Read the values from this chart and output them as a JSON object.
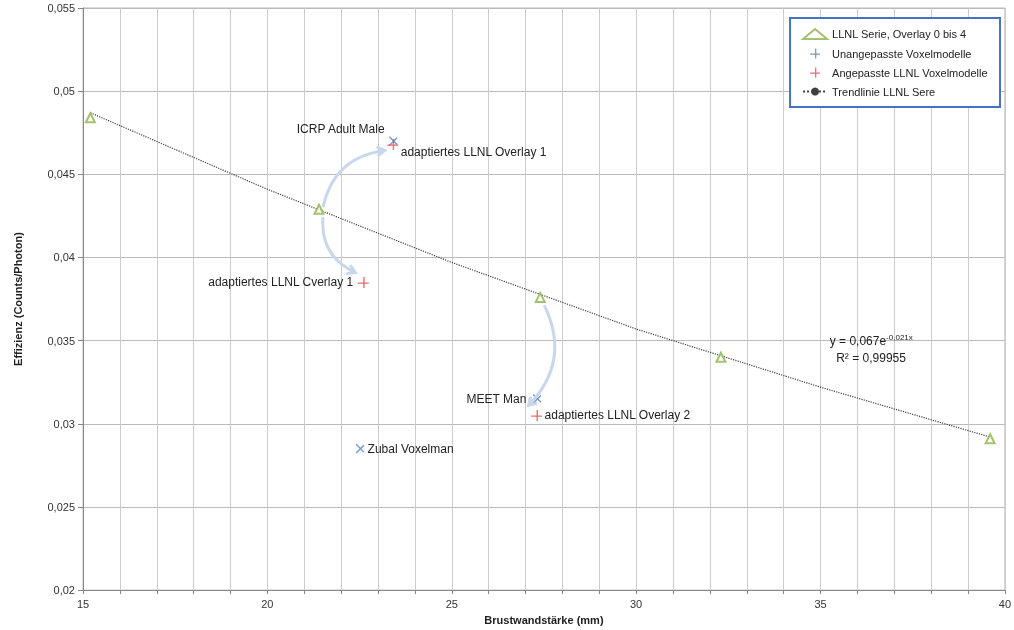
{
  "chart_data": {
    "type": "scatter",
    "xlabel": "Brustwandstärke (mm)",
    "ylabel": "Effizienz (Counts/Photon)",
    "xlim": [
      15,
      40
    ],
    "xticks": [
      15,
      {
        "value": 16,
        "label": null
      },
      {
        "value": 17,
        "label": null
      },
      {
        "value": 18,
        "label": null
      },
      {
        "value": 19,
        "label": null
      },
      20,
      {
        "value": 21,
        "label": null
      },
      {
        "value": 22,
        "label": null
      },
      {
        "value": 23,
        "label": null
      },
      {
        "value": 24,
        "label": null
      },
      25,
      {
        "value": 26,
        "label": null
      },
      {
        "value": 27,
        "label": null
      },
      {
        "value": 28,
        "label": null
      },
      {
        "value": 29,
        "label": null
      },
      30,
      {
        "value": 31,
        "label": null
      },
      {
        "value": 32,
        "label": null
      },
      {
        "value": 33,
        "label": null
      },
      {
        "value": 34,
        "label": null
      },
      35,
      {
        "value": 36,
        "label": null
      },
      {
        "value": 37,
        "label": null
      },
      {
        "value": 38,
        "label": null
      },
      {
        "value": 39,
        "label": null
      },
      40
    ],
    "ylim": [
      0.02,
      0.055
    ],
    "yticks": [
      {
        "value": 0.02,
        "label": "0,02"
      },
      {
        "value": 0.025,
        "label": "0,025"
      },
      {
        "value": 0.03,
        "label": "0,03"
      },
      {
        "value": 0.035,
        "label": "0,035"
      },
      {
        "value": 0.04,
        "label": "0,04"
      },
      {
        "value": 0.045,
        "label": "0,045"
      },
      {
        "value": 0.05,
        "label": "0,05"
      },
      {
        "value": 0.055,
        "label": "0,055"
      }
    ],
    "grid": true,
    "legend": "top right",
    "series": [
      {
        "name": "LLNL Serie, Overlay 0 bis 4",
        "color": "#8cb14a",
        "marker": "triangle",
        "x": [
          15.2,
          21.4,
          27.4,
          32.3,
          39.6
        ],
        "values": [
          0.0484,
          0.0429,
          0.0376,
          0.034,
          0.0291
        ]
      },
      {
        "name": "Unangepasste Voxelmodelle",
        "color": "#4f81bd",
        "marker": "cross",
        "x": [
          23.4,
          27.3,
          22.5
        ],
        "values": [
          0.047,
          0.0315,
          0.0285
        ]
      },
      {
        "name": "Angepasste LLNL Voxelmodelle",
        "color": "#e0474c",
        "marker": "cross",
        "x": [
          23.4,
          22.6,
          27.3
        ],
        "values": [
          0.0468,
          0.0385,
          0.0305
        ]
      },
      {
        "name": "Trendlinie LLNL Sere",
        "type": "line",
        "color": "#404040",
        "marker": "none",
        "line_style": "dotted",
        "x": [
          15.2,
          20,
          25,
          30,
          35,
          39.6
        ],
        "values": [
          0.0487,
          0.0441,
          0.0397,
          0.0357,
          0.0322,
          0.0292
        ]
      }
    ],
    "annotations": [
      {
        "text": "ICRP Adult Male",
        "x": 23.4,
        "y": 0.047
      },
      {
        "text": "adaptiertes LLNL Overlay 1",
        "x": 23.4,
        "y": 0.0468
      },
      {
        "text": "adaptiertes LLNL Cverlay 1",
        "x": 22.6,
        "y": 0.0385
      },
      {
        "text": "MEET Man",
        "x": 27.3,
        "y": 0.0315
      },
      {
        "text": "adaptiertes LLNL Overlay 2",
        "x": 27.3,
        "y": 0.0305
      },
      {
        "text": "Zubal Voxelman",
        "x": 22.5,
        "y": 0.0285
      },
      "y = 0,067e$^{-0,021x}$",
      "R² = 0,99955"
    ]
  }
}
